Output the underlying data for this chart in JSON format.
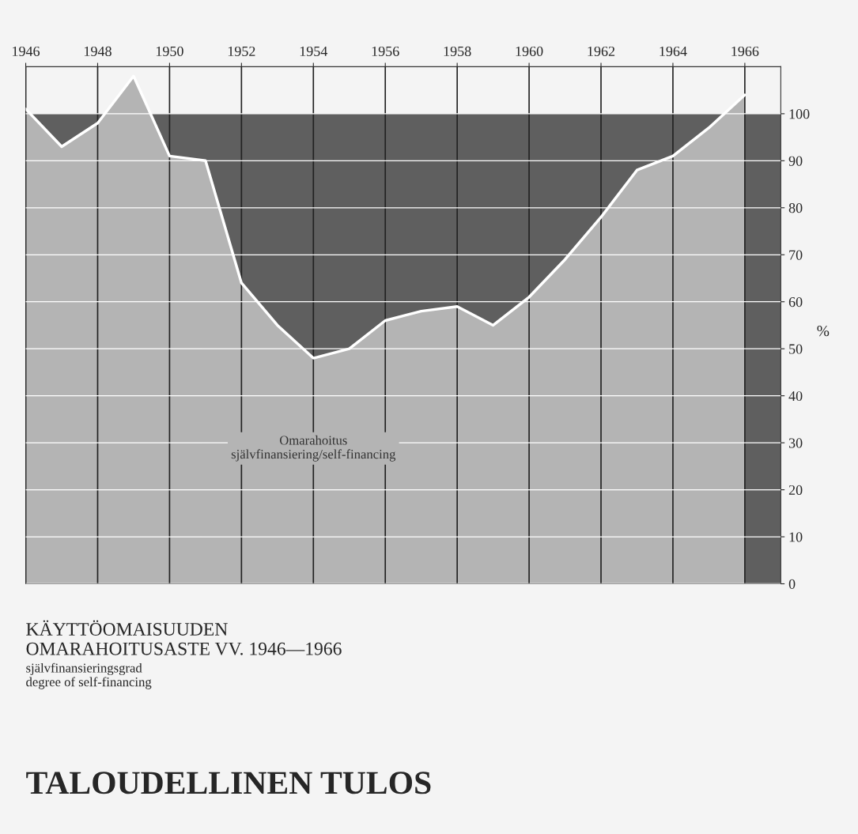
{
  "chart_data": {
    "type": "area",
    "title": "KÄYTTÖOMAISUUDEN\nOMARAHOITUSASTE VV. 1946—1966",
    "subtitle": "självfinansieringsgrad\ndegree of self-financing",
    "ylabel": "%",
    "x": [
      1946,
      1947,
      1948,
      1949,
      1950,
      1951,
      1952,
      1953,
      1954,
      1955,
      1956,
      1957,
      1958,
      1959,
      1960,
      1961,
      1962,
      1963,
      1964,
      1965,
      1966
    ],
    "series": [
      {
        "name": "Omarahoitus\nsjälvfinansiering/self-financing",
        "color": "#b4b4b4",
        "values": [
          101,
          93,
          98,
          108,
          91,
          90,
          64,
          55,
          48,
          50,
          56,
          58,
          59,
          55,
          61,
          69,
          78,
          88,
          91,
          97,
          104
        ]
      }
    ],
    "bands": [
      {
        "axis": "y",
        "from": 0,
        "to": 100,
        "color": "#5f5f5f"
      }
    ],
    "xlim": [
      1946,
      1967
    ],
    "xticks": [
      1946,
      1948,
      1950,
      1952,
      1954,
      1956,
      1958,
      1960,
      1962,
      1964,
      1966
    ],
    "ylim": [
      0,
      110
    ],
    "yticks": [
      0,
      10,
      20,
      30,
      40,
      50,
      60,
      70,
      80,
      90,
      100
    ],
    "grid": true,
    "annotations": [
      "TALOUDELLINEN TULOS"
    ]
  }
}
